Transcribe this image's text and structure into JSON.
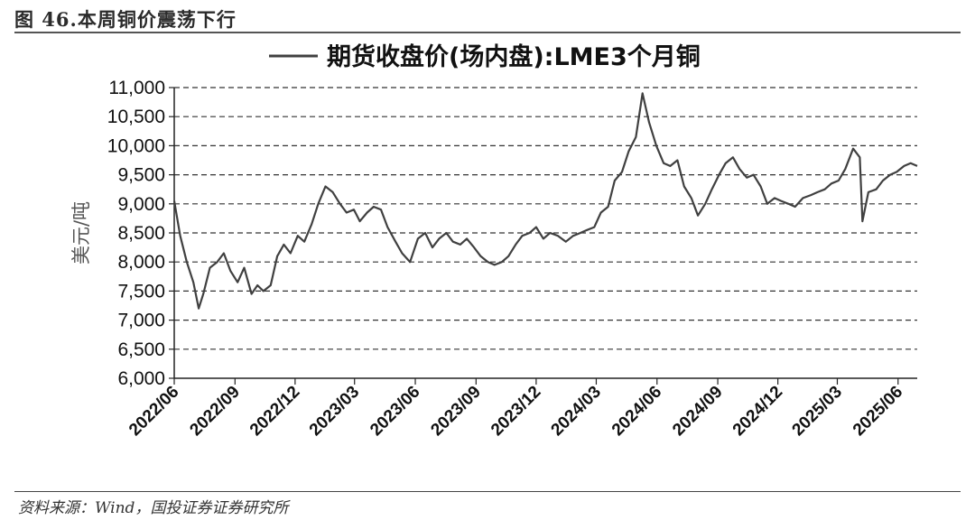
{
  "figure": {
    "title": "图 46.本周铜价震荡下行",
    "source": "资料来源：Wind，国投证券证券研究所"
  },
  "chart_data": {
    "type": "line",
    "legend_label": "期货收盘价(场内盘):LME3个月铜",
    "legend_position": "top-center",
    "ylabel": "美元/吨",
    "ylim": [
      6000,
      11000
    ],
    "yticks": [
      "6,000",
      "6,500",
      "7,000",
      "7,500",
      "8,000",
      "8,500",
      "9,000",
      "9,500",
      "10,000",
      "10,500",
      "11,000"
    ],
    "xticks": [
      "2022/06",
      "2022/09",
      "2022/12",
      "2023/03",
      "2023/06",
      "2023/09",
      "2023/12",
      "2024/03",
      "2024/06",
      "2024/09",
      "2024/12",
      "2025/03",
      "2025/06"
    ],
    "grid": "horizontal-dashed",
    "line_color": "#404040",
    "series": [
      {
        "x": [
          "2022/06/01",
          "2022/06/10",
          "2022/06/20",
          "2022/06/30",
          "2022/07/08",
          "2022/07/15",
          "2022/07/25",
          "2022/08/05",
          "2022/08/15",
          "2022/08/25",
          "2022/09/05",
          "2022/09/15",
          "2022/09/26",
          "2022/10/05",
          "2022/10/14",
          "2022/10/25",
          "2022/11/04",
          "2022/11/14",
          "2022/11/24",
          "2022/12/05",
          "2022/12/15",
          "2022/12/26",
          "2023/01/05",
          "2023/01/16",
          "2023/01/27",
          "2023/02/07",
          "2023/02/17",
          "2023/02/28",
          "2023/03/09",
          "2023/03/20",
          "2023/03/30",
          "2023/04/10",
          "2023/04/20",
          "2023/05/02",
          "2023/05/12",
          "2023/05/24",
          "2023/06/05",
          "2023/06/16",
          "2023/06/27",
          "2023/07/07",
          "2023/07/18",
          "2023/07/28",
          "2023/08/08",
          "2023/08/18",
          "2023/08/29",
          "2023/09/08",
          "2023/09/19",
          "2023/09/29",
          "2023/10/10",
          "2023/10/20",
          "2023/10/31",
          "2023/11/10",
          "2023/11/21",
          "2023/12/01",
          "2023/12/12",
          "2023/12/22",
          "2024/01/03",
          "2024/01/15",
          "2024/01/26",
          "2024/02/06",
          "2024/02/16",
          "2024/02/27",
          "2024/03/08",
          "2024/03/19",
          "2024/03/29",
          "2024/04/09",
          "2024/04/19",
          "2024/04/30",
          "2024/05/10",
          "2024/05/20",
          "2024/05/31",
          "2024/06/11",
          "2024/06/21",
          "2024/07/02",
          "2024/07/12",
          "2024/07/23",
          "2024/08/02",
          "2024/08/13",
          "2024/08/23",
          "2024/09/03",
          "2024/09/13",
          "2024/09/24",
          "2024/10/04",
          "2024/10/15",
          "2024/10/25",
          "2024/11/05",
          "2024/11/15",
          "2024/11/26",
          "2024/12/06",
          "2024/12/17",
          "2024/12/27",
          "2025/01/08",
          "2025/01/20",
          "2025/01/30",
          "2025/02/10",
          "2025/02/20",
          "2025/03/03",
          "2025/03/13",
          "2025/03/25",
          "2025/04/04",
          "2025/04/08",
          "2025/04/17",
          "2025/04/29",
          "2025/05/09",
          "2025/05/20",
          "2025/05/30",
          "2025/06/10",
          "2025/06/20",
          "2025/06/30"
        ],
        "values": [
          9050,
          8450,
          8000,
          7650,
          7200,
          7450,
          7900,
          8000,
          8150,
          7850,
          7650,
          7900,
          7450,
          7600,
          7500,
          7600,
          8100,
          8300,
          8150,
          8450,
          8350,
          8650,
          9000,
          9300,
          9200,
          9000,
          8850,
          8900,
          8700,
          8850,
          8950,
          8900,
          8600,
          8350,
          8150,
          8000,
          8400,
          8500,
          8250,
          8400,
          8500,
          8350,
          8300,
          8400,
          8250,
          8100,
          8000,
          7950,
          8000,
          8100,
          8300,
          8450,
          8500,
          8600,
          8400,
          8500,
          8450,
          8350,
          8450,
          8500,
          8550,
          8600,
          8850,
          8950,
          9400,
          9550,
          9900,
          10150,
          10900,
          10400,
          10000,
          9700,
          9650,
          9750,
          9300,
          9100,
          8800,
          9000,
          9250,
          9500,
          9700,
          9800,
          9600,
          9450,
          9500,
          9300,
          9000,
          9100,
          9050,
          9000,
          8950,
          9100,
          9150,
          9200,
          9250,
          9350,
          9400,
          9600,
          9950,
          9800,
          8700,
          9200,
          9250,
          9400,
          9500,
          9550,
          9650,
          9700,
          9650
        ]
      }
    ]
  }
}
